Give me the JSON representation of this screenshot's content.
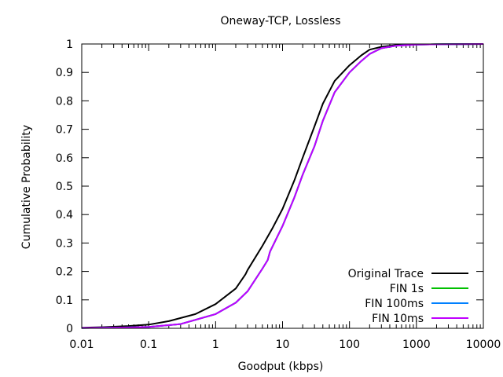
{
  "chart_data": {
    "type": "line",
    "title": "Oneway-TCP, Lossless",
    "xlabel": "Goodput (kbps)",
    "ylabel": "Cumulative Probability",
    "xscale": "log",
    "xlim": [
      0.01,
      10000
    ],
    "ylim": [
      0,
      1
    ],
    "x_ticks": [
      0.01,
      0.1,
      1,
      10,
      100,
      1000,
      10000
    ],
    "x_tick_labels": [
      "0.01",
      "0.1",
      "1",
      "10",
      "100",
      "1000",
      "10000"
    ],
    "y_ticks": [
      0,
      0.1,
      0.2,
      0.3,
      0.4,
      0.5,
      0.6,
      0.7,
      0.8,
      0.9,
      1
    ],
    "y_tick_labels": [
      "0",
      "0.1",
      "0.2",
      "0.3",
      "0.4",
      "0.5",
      "0.6",
      "0.7",
      "0.8",
      "0.9",
      "1"
    ],
    "grid": false,
    "legend_position": "bottom-right",
    "series": [
      {
        "name": "Original Trace",
        "color": "#000000",
        "points": [
          [
            0.01,
            0.002
          ],
          [
            0.02,
            0.004
          ],
          [
            0.05,
            0.008
          ],
          [
            0.1,
            0.013
          ],
          [
            0.2,
            0.025
          ],
          [
            0.5,
            0.05
          ],
          [
            1,
            0.085
          ],
          [
            2,
            0.14
          ],
          [
            2.8,
            0.19
          ],
          [
            3,
            0.205
          ],
          [
            5,
            0.29
          ],
          [
            7,
            0.35
          ],
          [
            10,
            0.42
          ],
          [
            15,
            0.52
          ],
          [
            20,
            0.6
          ],
          [
            30,
            0.71
          ],
          [
            40,
            0.79
          ],
          [
            60,
            0.87
          ],
          [
            100,
            0.925
          ],
          [
            150,
            0.96
          ],
          [
            200,
            0.98
          ],
          [
            300,
            0.99
          ],
          [
            500,
            0.996
          ],
          [
            1000,
            0.998
          ],
          [
            2000,
            0.999
          ],
          [
            10000,
            1.0
          ]
        ]
      },
      {
        "name": "FIN 1s",
        "color": "#00c000",
        "points": [
          [
            0.01,
            0.001
          ],
          [
            0.05,
            0.003
          ],
          [
            0.1,
            0.005
          ],
          [
            0.3,
            0.015
          ],
          [
            1,
            0.05
          ],
          [
            2,
            0.09
          ],
          [
            3,
            0.13
          ],
          [
            5,
            0.21
          ],
          [
            6,
            0.24
          ],
          [
            6.5,
            0.27
          ],
          [
            10,
            0.36
          ],
          [
            15,
            0.46
          ],
          [
            20,
            0.54
          ],
          [
            30,
            0.64
          ],
          [
            40,
            0.73
          ],
          [
            60,
            0.83
          ],
          [
            100,
            0.9
          ],
          [
            150,
            0.94
          ],
          [
            200,
            0.965
          ],
          [
            300,
            0.985
          ],
          [
            500,
            0.994
          ],
          [
            1000,
            0.998
          ],
          [
            2000,
            0.999
          ],
          [
            10000,
            1.0
          ]
        ]
      },
      {
        "name": "FIN 100ms",
        "color": "#0080ff",
        "points": [
          [
            0.01,
            0.001
          ],
          [
            0.05,
            0.003
          ],
          [
            0.1,
            0.005
          ],
          [
            0.3,
            0.015
          ],
          [
            1,
            0.05
          ],
          [
            2,
            0.09
          ],
          [
            3,
            0.13
          ],
          [
            5,
            0.21
          ],
          [
            6,
            0.24
          ],
          [
            6.5,
            0.27
          ],
          [
            10,
            0.36
          ],
          [
            15,
            0.46
          ],
          [
            20,
            0.54
          ],
          [
            30,
            0.64
          ],
          [
            40,
            0.73
          ],
          [
            60,
            0.83
          ],
          [
            100,
            0.9
          ],
          [
            150,
            0.94
          ],
          [
            200,
            0.965
          ],
          [
            300,
            0.985
          ],
          [
            500,
            0.994
          ],
          [
            1000,
            0.998
          ],
          [
            2000,
            0.999
          ],
          [
            10000,
            1.0
          ]
        ]
      },
      {
        "name": "FIN 10ms",
        "color": "#c000ff",
        "points": [
          [
            0.01,
            0.001
          ],
          [
            0.05,
            0.003
          ],
          [
            0.1,
            0.005
          ],
          [
            0.3,
            0.015
          ],
          [
            1,
            0.05
          ],
          [
            2,
            0.09
          ],
          [
            3,
            0.13
          ],
          [
            5,
            0.21
          ],
          [
            6,
            0.24
          ],
          [
            6.5,
            0.27
          ],
          [
            10,
            0.36
          ],
          [
            15,
            0.46
          ],
          [
            20,
            0.54
          ],
          [
            30,
            0.64
          ],
          [
            40,
            0.73
          ],
          [
            60,
            0.83
          ],
          [
            100,
            0.9
          ],
          [
            150,
            0.94
          ],
          [
            200,
            0.965
          ],
          [
            300,
            0.985
          ],
          [
            500,
            0.994
          ],
          [
            1000,
            0.998
          ],
          [
            2000,
            0.999
          ],
          [
            10000,
            1.0
          ]
        ]
      }
    ]
  }
}
